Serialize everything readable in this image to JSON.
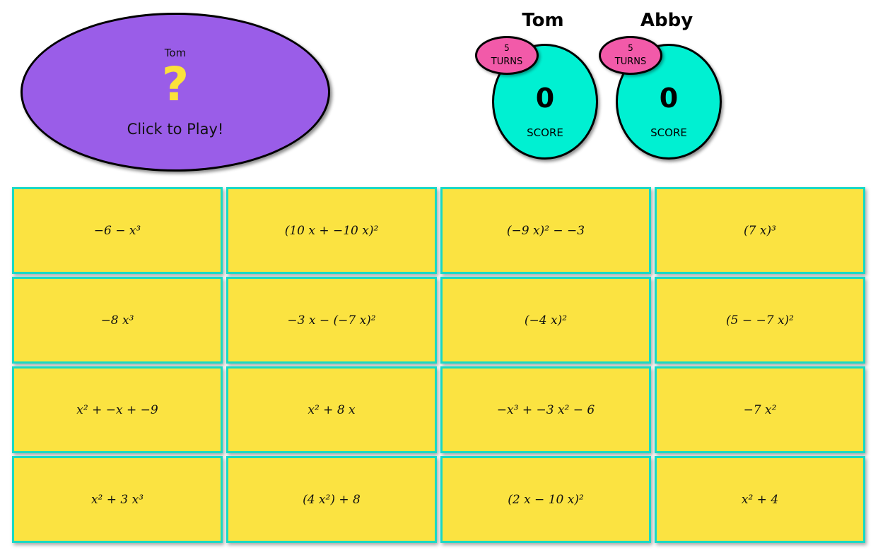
{
  "play_area": {
    "current_player": "Tom",
    "question_mark": "?",
    "label": "Click to Play!"
  },
  "players": [
    {
      "name": "Tom",
      "score": "0",
      "score_label": "SCORE",
      "turns_count": "5",
      "turns_label": "TURNS"
    },
    {
      "name": "Abby",
      "score": "0",
      "score_label": "SCORE",
      "turns_count": "5",
      "turns_label": "TURNS"
    }
  ],
  "cards": [
    "−6 − x³",
    "(10 x + −10 x)²",
    "(−9 x)² − −3",
    "(7 x)³",
    "−8 x³",
    "−3 x − (−7 x)²",
    "(−4 x)²",
    "(5 − −7 x)²",
    "x² + −x + −9",
    "x² + 8 x",
    "−x³ + −3 x² − 6",
    "−7 x²",
    "x² + 3 x³",
    "(4 x²) + 8",
    "(2 x − 10 x)²",
    "x² + 4"
  ],
  "colors": {
    "play_oval": "#9a5de8",
    "question_mark": "#fbe23a",
    "score_circle": "#00f0d2",
    "turns_badge": "#f25aa9",
    "card": "#fbe341",
    "card_border": "#19d9c4"
  }
}
